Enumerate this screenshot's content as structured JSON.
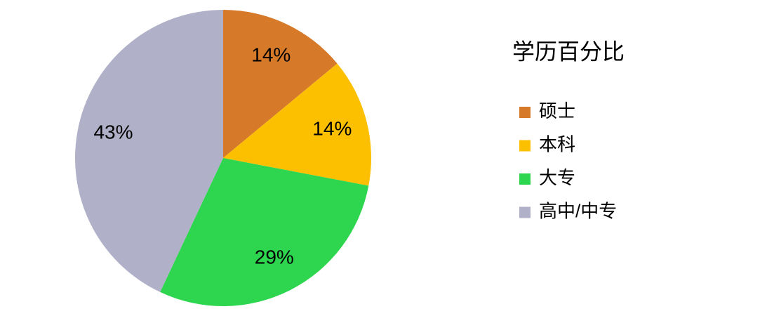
{
  "chart_data": {
    "type": "pie",
    "title": "学历百分比",
    "categories": [
      "硕士",
      "本科",
      "大专",
      "高中/中专"
    ],
    "values": [
      14,
      14,
      29,
      43
    ],
    "value_labels": [
      "14%",
      "14%",
      "29%",
      "43%"
    ],
    "colors": [
      "#d67a2a",
      "#fcc000",
      "#2ed54f",
      "#b0b0c8"
    ],
    "legend": "right"
  }
}
